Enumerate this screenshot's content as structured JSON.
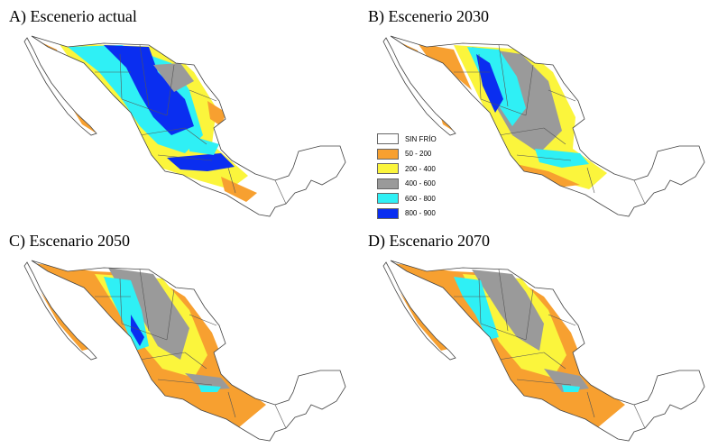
{
  "panels": [
    {
      "title": "A) Escenerio actual"
    },
    {
      "title": "B) Escenerio 2030"
    },
    {
      "title": "C) Escenario 2050"
    },
    {
      "title": "D) Escenario 2070"
    }
  ],
  "legend": {
    "items": [
      {
        "label": "SIN FRÍO",
        "color": "#ffffff"
      },
      {
        "label": "50 - 200",
        "color": "#f7a030"
      },
      {
        "label": "200 - 400",
        "color": "#fbf53c"
      },
      {
        "label": "400 - 600",
        "color": "#9a9a9a"
      },
      {
        "label": "600 - 800",
        "color": "#2ff0f5"
      },
      {
        "label": "800 - 900",
        "color": "#0a2ef0"
      }
    ]
  }
}
